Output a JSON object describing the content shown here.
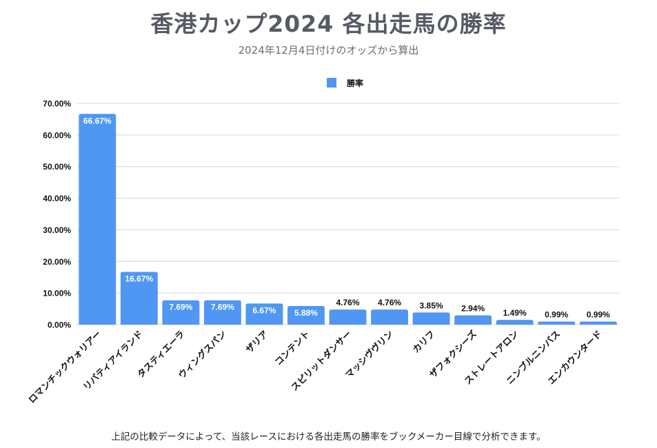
{
  "title": "香港カップ2024 各出走馬の勝率",
  "subtitle": "2024年12月4日付けのオッズから算出",
  "footnote": "上記の比較データによって、当該レースにおける各出走馬の勝率をブックメーカー目線で分析できます。",
  "chart_data": {
    "type": "bar",
    "categories": [
      "ロマンチックウォリアー",
      "リバティアイランド",
      "タスティエーラ",
      "ウィングスパン",
      "ザリア",
      "コンテント",
      "スピリットダンサー",
      "マッシヴヴリン",
      "カリフ",
      "ザフォクシーズ",
      "ストレートアロン",
      "ニンブルニンバス",
      "エンカウンタード"
    ],
    "series": [
      {
        "name": "勝率",
        "values": [
          66.67,
          16.67,
          7.69,
          7.69,
          6.67,
          5.88,
          4.76,
          4.76,
          3.85,
          2.94,
          1.49,
          0.99,
          0.99
        ],
        "labels": [
          "66.67%",
          "16.67%",
          "7.69%",
          "7.69%",
          "6.67%",
          "5.88%",
          "4.76%",
          "4.76%",
          "3.85%",
          "2.94%",
          "1.49%",
          "0.99%",
          "0.99%"
        ]
      }
    ],
    "yticks": [
      "0.00%",
      "10.00%",
      "20.00%",
      "30.00%",
      "40.00%",
      "50.00%",
      "60.00%",
      "70.00%"
    ],
    "ylim": [
      0,
      70
    ],
    "xlabel": "",
    "ylabel": "",
    "grid": true,
    "legend_position": "top-center",
    "colors": {
      "bar": "#4f97f3",
      "grid": "#d6d6d6",
      "axis_text": "#111111"
    }
  }
}
